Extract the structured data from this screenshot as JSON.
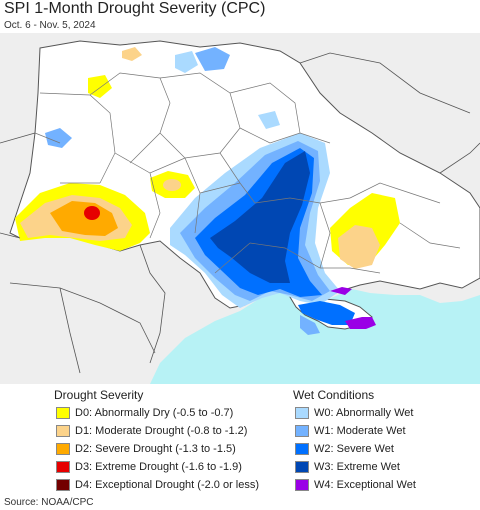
{
  "title": "SPI 1-Month Drought Severity (CPC)",
  "subtitle": "Oct. 6 - Nov. 5, 2024",
  "source": "Source: NOAA/CPC",
  "colors": {
    "land_outside": "#eeeeee",
    "land": "#ffffff",
    "sea": "#b7f2f5",
    "d0": "#ffff00",
    "d1": "#fcd38a",
    "d2": "#ffaa00",
    "d3": "#e60000",
    "d4": "#730000",
    "w0": "#aadaff",
    "w1": "#73b2ff",
    "w2": "#0070ff",
    "w3": "#0047b3",
    "w4": "#9a00e6"
  },
  "legend": {
    "drought_heading": "Drought Severity",
    "wet_heading": "Wet Conditions",
    "drought_items": [
      {
        "label": "D0: Abnormally Dry (-0.5 to -0.7)",
        "color": "#ffff00"
      },
      {
        "label": "D1: Moderate Drought (-0.8 to -1.2)",
        "color": "#fcd38a"
      },
      {
        "label": "D2: Severe Drought (-1.3 to -1.5)",
        "color": "#ffaa00"
      },
      {
        "label": "D3: Extreme Drought (-1.6 to -1.9)",
        "color": "#e60000"
      },
      {
        "label": "D4: Exceptional Drought (-2.0 or less)",
        "color": "#730000"
      }
    ],
    "wet_items": [
      {
        "label": "W0: Abnormally Wet",
        "color": "#aadaff"
      },
      {
        "label": "W1: Moderate Wet",
        "color": "#73b2ff"
      },
      {
        "label": "W2: Severe Wet",
        "color": "#0070ff"
      },
      {
        "label": "W3: Extreme Wet",
        "color": "#0047b3"
      },
      {
        "label": "W4: Exceptional Wet",
        "color": "#9a00e6"
      }
    ]
  }
}
